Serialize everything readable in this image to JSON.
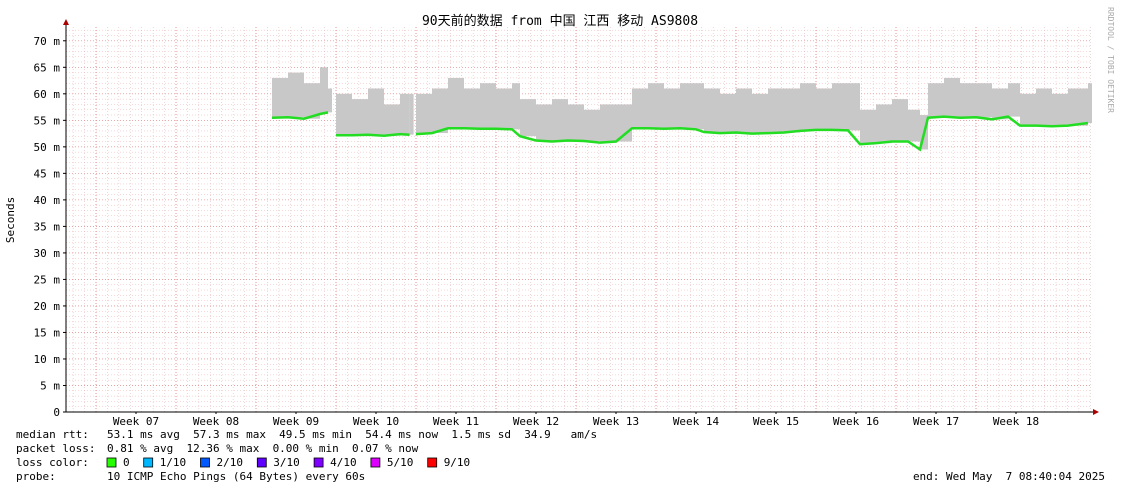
{
  "chart_data": {
    "type": "line",
    "title": "90天前的数据 from 中国 江西 移动 AS9808",
    "y_label": "Seconds",
    "watermark": "RRDTOOL / TOBI OETIKER",
    "xlim": [
      6.625,
      19.45
    ],
    "xticks": [
      {
        "value": 7.5,
        "label": "Week 07"
      },
      {
        "value": 8.5,
        "label": "Week 08"
      },
      {
        "value": 9.5,
        "label": "Week 09"
      },
      {
        "value": 10.5,
        "label": "Week 10"
      },
      {
        "value": 11.5,
        "label": "Week 11"
      },
      {
        "value": 12.5,
        "label": "Week 12"
      },
      {
        "value": 13.5,
        "label": "Week 13"
      },
      {
        "value": 14.5,
        "label": "Week 14"
      },
      {
        "value": 15.5,
        "label": "Week 15"
      },
      {
        "value": 16.5,
        "label": "Week 16"
      },
      {
        "value": 17.5,
        "label": "Week 17"
      },
      {
        "value": 18.5,
        "label": "Week 18"
      }
    ],
    "ylim": [
      0,
      0.0726
    ],
    "yticks": [
      0,
      {
        "value": 0.005,
        "label": "5 m"
      },
      {
        "value": 0.01,
        "label": "10 m"
      },
      {
        "value": 0.015,
        "label": "15 m"
      },
      {
        "value": 0.02,
        "label": "20 m"
      },
      {
        "value": 0.025,
        "label": "25 m"
      },
      {
        "value": 0.03,
        "label": "30 m"
      },
      {
        "value": 0.035,
        "label": "35 m"
      },
      {
        "value": 0.04,
        "label": "40 m"
      },
      {
        "value": 0.045,
        "label": "45 m"
      },
      {
        "value": 0.05,
        "label": "50 m"
      },
      {
        "value": 0.055,
        "label": "55 m"
      },
      {
        "value": 0.06,
        "label": "60 m"
      },
      {
        "value": 0.065,
        "label": "65 m"
      },
      {
        "value": 0.07,
        "label": "70 m"
      }
    ],
    "grid": true,
    "x": [
      9.2,
      9.4,
      9.6,
      9.8,
      9.9,
      9.96,
      10.0,
      10.2,
      10.4,
      10.6,
      10.8,
      10.92,
      10.96,
      11.0,
      11.2,
      11.4,
      11.6,
      11.8,
      12.0,
      12.2,
      12.3,
      12.5,
      12.7,
      12.9,
      13.1,
      13.3,
      13.5,
      13.7,
      13.9,
      14.1,
      14.3,
      14.5,
      14.6,
      14.8,
      15.0,
      15.2,
      15.4,
      15.6,
      15.8,
      16.0,
      16.2,
      16.4,
      16.55,
      16.75,
      16.95,
      17.15,
      17.3,
      17.4,
      17.6,
      17.8,
      18.0,
      18.2,
      18.4,
      18.55,
      18.75,
      18.95,
      19.15,
      19.4
    ],
    "series": [
      {
        "name": "median rtt",
        "color": "#22dd22",
        "values": [
          0.0555,
          0.0556,
          0.0553,
          0.0562,
          0.0565,
          null,
          0.0522,
          0.0522,
          0.0523,
          0.0521,
          0.0524,
          0.0523,
          null,
          0.0524,
          0.0526,
          0.0535,
          0.0535,
          0.0534,
          0.0534,
          0.0533,
          0.052,
          0.0512,
          0.051,
          0.0512,
          0.0511,
          0.0508,
          0.051,
          0.0535,
          0.0535,
          0.0534,
          0.0535,
          0.0533,
          0.0528,
          0.0526,
          0.0527,
          0.0525,
          0.0526,
          0.0527,
          0.053,
          0.0532,
          0.0532,
          0.0531,
          0.0505,
          0.0507,
          0.051,
          0.051,
          0.0495,
          0.0555,
          0.0557,
          0.0555,
          0.0556,
          0.0552,
          0.0557,
          0.054,
          0.054,
          0.0539,
          0.054,
          0.0545
        ]
      }
    ],
    "smoke": {
      "color": "#c8c8c8",
      "values": [
        0.063,
        0.064,
        0.062,
        0.065,
        0.061,
        null,
        0.06,
        0.059,
        0.061,
        0.058,
        0.06,
        0.06,
        null,
        0.06,
        0.061,
        0.063,
        0.061,
        0.062,
        0.061,
        0.062,
        0.059,
        0.058,
        0.059,
        0.058,
        0.057,
        0.058,
        0.058,
        0.061,
        0.062,
        0.061,
        0.062,
        0.062,
        0.061,
        0.06,
        0.061,
        0.06,
        0.061,
        0.061,
        0.062,
        0.061,
        0.062,
        0.062,
        0.057,
        0.058,
        0.059,
        0.057,
        0.056,
        0.062,
        0.063,
        0.062,
        0.062,
        0.061,
        0.062,
        0.06,
        0.061,
        0.06,
        0.061,
        0.062
      ]
    },
    "stats": [
      {
        "label": "median rtt:",
        "text": "53.1 ms avg  57.3 ms max  49.5 ms min  54.4 ms now  1.5 ms sd  34.9   am/s"
      },
      {
        "label": "packet loss:",
        "text": "0.81 % avg  12.36 % max  0.00 % min  0.07 % now"
      }
    ],
    "loss_label": "loss color:",
    "loss_colors": [
      {
        "label": "0",
        "color": "#26ff00"
      },
      {
        "label": "1/10",
        "color": "#00b8ff"
      },
      {
        "label": "2/10",
        "color": "#0059ff"
      },
      {
        "label": "3/10",
        "color": "#5e00ff"
      },
      {
        "label": "4/10",
        "color": "#7e00ff"
      },
      {
        "label": "5/10",
        "color": "#dd00ff"
      },
      {
        "label": "9/10",
        "color": "#ff0000"
      }
    ],
    "probe_label": "probe:",
    "probe": "10 ICMP Echo Pings (64 Bytes) every 60s",
    "end": "end: Wed May  7 08:40:04 2025"
  }
}
